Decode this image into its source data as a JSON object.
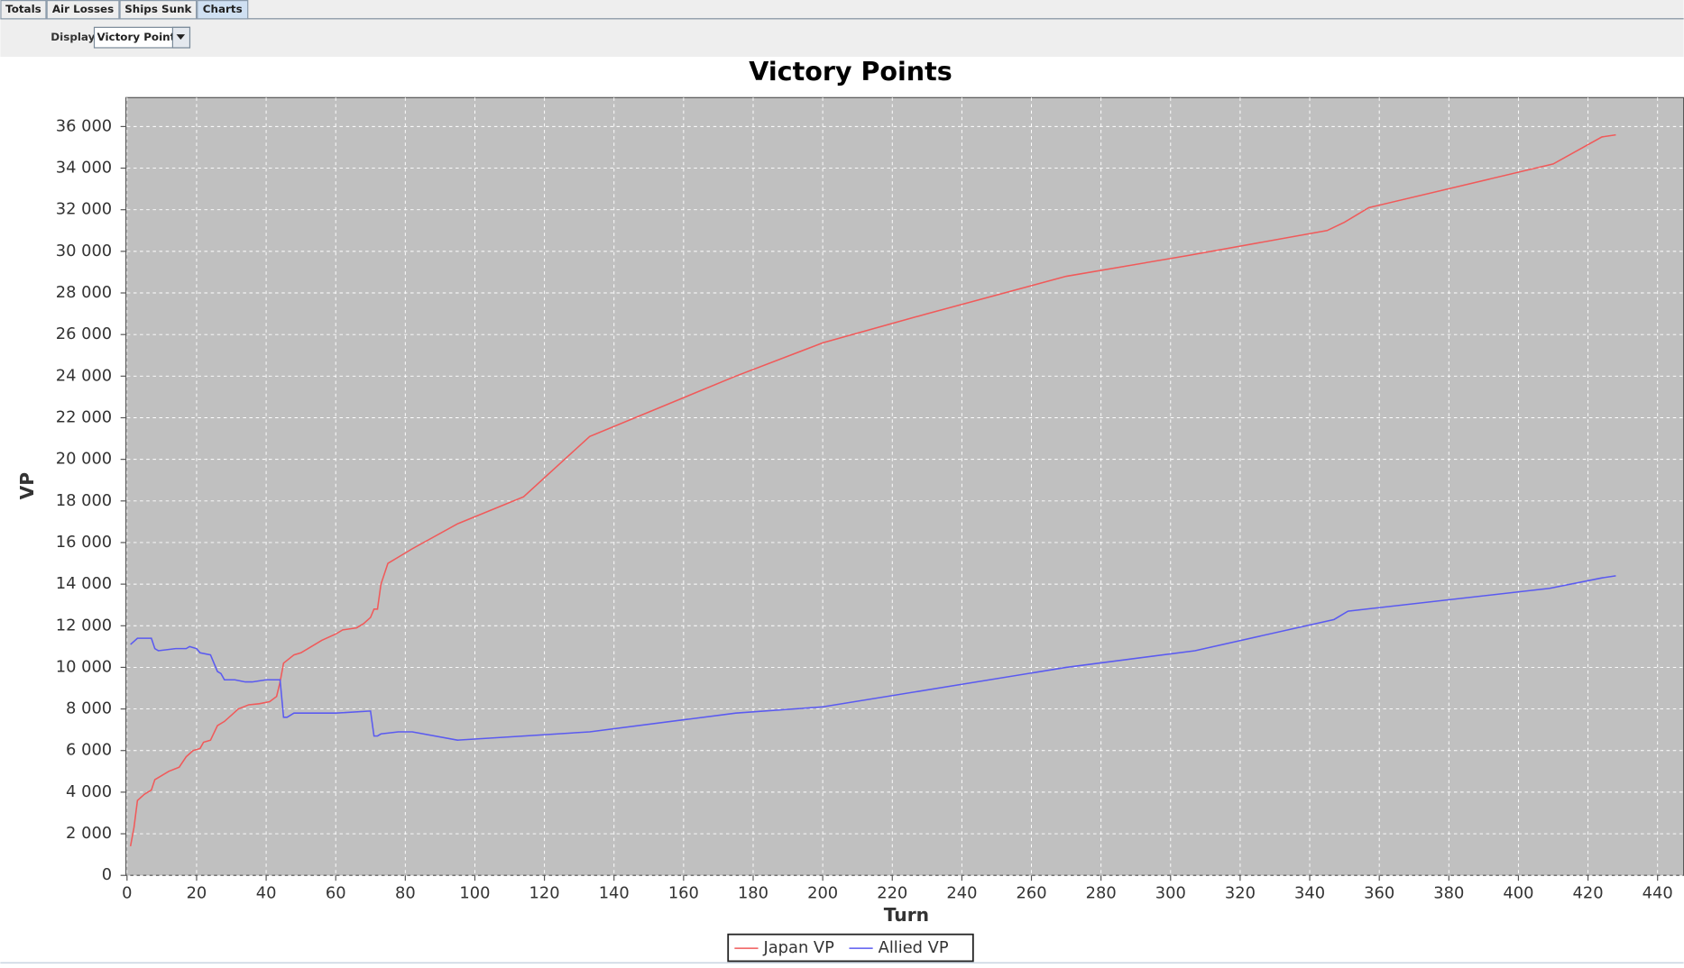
{
  "ui": {
    "tabs": [
      "Totals",
      "Air Losses",
      "Ships Sunk",
      "Charts"
    ],
    "active_tab": 3,
    "display_label": "Display:",
    "display_value": "Victory Points"
  },
  "chart_data": {
    "type": "line",
    "title": "Victory Points",
    "x_label": "Turn",
    "y_label": "VP",
    "xlim": [
      0,
      447.5
    ],
    "ylim": [
      0,
      37390
    ],
    "xticks": [
      0,
      20,
      40,
      60,
      80,
      100,
      120,
      140,
      160,
      180,
      200,
      220,
      240,
      260,
      280,
      300,
      320,
      340,
      360,
      380,
      400,
      420,
      440
    ],
    "yticks": [
      0,
      {
        "value": 2000,
        "label": "2 000"
      },
      {
        "value": 4000,
        "label": "4 000"
      },
      {
        "value": 6000,
        "label": "6 000"
      },
      {
        "value": 8000,
        "label": "8 000"
      },
      {
        "value": 10000,
        "label": "10 000"
      },
      {
        "value": 12000,
        "label": "12 000"
      },
      {
        "value": 14000,
        "label": "14 000"
      },
      {
        "value": 16000,
        "label": "16 000"
      },
      {
        "value": 18000,
        "label": "18 000"
      },
      {
        "value": 20000,
        "label": "20 000"
      },
      {
        "value": 22000,
        "label": "22 000"
      },
      {
        "value": 24000,
        "label": "24 000"
      },
      {
        "value": 26000,
        "label": "26 000"
      },
      {
        "value": 28000,
        "label": "28 000"
      },
      {
        "value": 30000,
        "label": "30 000"
      },
      {
        "value": 32000,
        "label": "32 000"
      },
      {
        "value": 34000,
        "label": "34 000"
      },
      {
        "value": 36000,
        "label": "36 000"
      }
    ],
    "grid": true,
    "legend": "bottom",
    "series": [
      {
        "name": "Japan VP",
        "color": "#f05a5a",
        "x": [
          1,
          2,
          3,
          5,
          7,
          8,
          10,
          12,
          15,
          17,
          19,
          21,
          22,
          24,
          26,
          28,
          30,
          32,
          35,
          38,
          41,
          43,
          44,
          45,
          48,
          50,
          52,
          56,
          60,
          62,
          66,
          68,
          70,
          71,
          72,
          73,
          75,
          78,
          82,
          95,
          114,
          133,
          175,
          200,
          230,
          270,
          305,
          345,
          350,
          357,
          410,
          424,
          428
        ],
        "values": [
          1400,
          2300,
          3600,
          3900,
          4100,
          4600,
          4800,
          5000,
          5200,
          5700,
          6000,
          6100,
          6400,
          6500,
          7200,
          7400,
          7700,
          8000,
          8200,
          8250,
          8350,
          8600,
          9300,
          10200,
          10600,
          10700,
          10900,
          11300,
          11600,
          11800,
          11900,
          12100,
          12400,
          12800,
          12800,
          14000,
          15000,
          15300,
          15700,
          16900,
          18200,
          21100,
          24000,
          25600,
          27000,
          28800,
          29800,
          31000,
          31400,
          32100,
          34200,
          35500,
          35600
        ]
      },
      {
        "name": "Allied VP",
        "color": "#5a5af0",
        "x": [
          1,
          3,
          7,
          8,
          9,
          14,
          17,
          18,
          20,
          21,
          24,
          26,
          27,
          28,
          31,
          34,
          36,
          40,
          44,
          45,
          46,
          48,
          55,
          60,
          70,
          71,
          72,
          73,
          78,
          82,
          95,
          114,
          133,
          175,
          200,
          270,
          307,
          347,
          351,
          409,
          424,
          428
        ],
        "values": [
          11100,
          11400,
          11400,
          10900,
          10800,
          10900,
          10900,
          11000,
          10900,
          10700,
          10600,
          9800,
          9700,
          9400,
          9400,
          9300,
          9300,
          9400,
          9400,
          7600,
          7600,
          7800,
          7800,
          7800,
          7900,
          6700,
          6700,
          6800,
          6900,
          6900,
          6500,
          6700,
          6900,
          7800,
          8100,
          10000,
          10800,
          12300,
          12700,
          13800,
          14300,
          14400
        ]
      }
    ]
  }
}
